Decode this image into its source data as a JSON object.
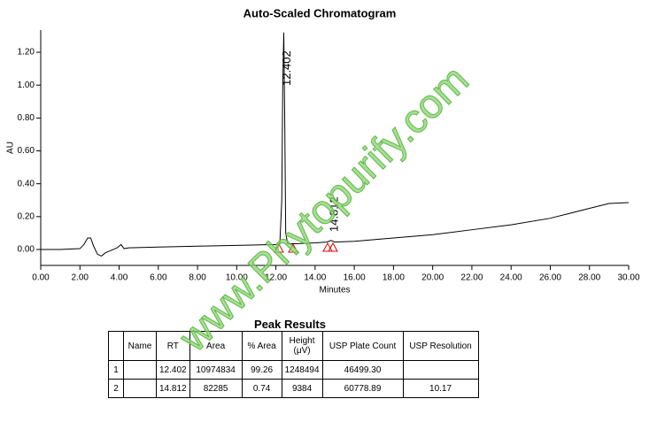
{
  "chart_data": {
    "type": "line",
    "title": "Auto-Scaled Chromatogram",
    "y_label": "AU",
    "x_label": "Minutes",
    "x": [
      0,
      1,
      2,
      2.2,
      2.4,
      2.55,
      2.7,
      2.9,
      3.1,
      3.3,
      3.6,
      3.9,
      4.1,
      4.25,
      4.5,
      6,
      8,
      10,
      12,
      12.2,
      12.3,
      12.35,
      12.402,
      12.45,
      12.5,
      12.6,
      13,
      14,
      14.6,
      14.812,
      15.0,
      16,
      18,
      20,
      22,
      24,
      26,
      27,
      28,
      29,
      30
    ],
    "series": [
      {
        "color": "#000000",
        "values": [
          0,
          0,
          0.005,
          0.03,
          0.07,
          0.07,
          0.02,
          -0.03,
          -0.04,
          -0.02,
          -0.005,
          0.01,
          0.03,
          0.005,
          0.01,
          0.015,
          0.02,
          0.025,
          0.03,
          0.035,
          0.3,
          1.0,
          1.32,
          0.8,
          0.1,
          0.035,
          0.035,
          0.04,
          0.045,
          0.055,
          0.045,
          0.05,
          0.07,
          0.09,
          0.12,
          0.15,
          0.19,
          0.22,
          0.25,
          0.28,
          0.285
        ]
      }
    ],
    "annotations": [
      {
        "label": "12.402",
        "x": 12.402
      },
      {
        "label": "14.812",
        "x": 14.812
      }
    ],
    "xlim": [
      0,
      30
    ],
    "ylim": [
      -0.097,
      1.335
    ],
    "xticks": [
      {
        "value": 0,
        "label": "0.00"
      },
      {
        "value": 2,
        "label": "2.00"
      },
      {
        "value": 4,
        "label": "4.00"
      },
      {
        "value": 6,
        "label": "6.00"
      },
      {
        "value": 8,
        "label": "8.00"
      },
      {
        "value": 10,
        "label": "10.00"
      },
      {
        "value": 12,
        "label": "12.00"
      },
      {
        "value": 14,
        "label": "14.00"
      },
      {
        "value": 16,
        "label": "16.00"
      },
      {
        "value": 18,
        "label": "18.00"
      },
      {
        "value": 20,
        "label": "20.00"
      },
      {
        "value": 22,
        "label": "22.00"
      },
      {
        "value": 24,
        "label": "24.00"
      },
      {
        "value": 26,
        "label": "26.00"
      },
      {
        "value": 28,
        "label": "28.00"
      },
      {
        "value": 30,
        "label": "30.00"
      }
    ],
    "yticks": [
      {
        "value": 0,
        "label": "0.00"
      },
      {
        "value": 0.2,
        "label": "0.20"
      },
      {
        "value": 0.4,
        "label": "0.40"
      },
      {
        "value": 0.6,
        "label": "0.60"
      },
      {
        "value": 0.8,
        "label": "0.80"
      },
      {
        "value": 1.0,
        "label": "1.00"
      },
      {
        "value": 1.2,
        "label": "1.20"
      }
    ]
  },
  "table": {
    "title": "Peak Results",
    "header": [
      null,
      "Name",
      "RT",
      "Area",
      "% Area",
      "Height (μV)",
      "USP Plate Count",
      "USP Resolution"
    ],
    "rows": [
      [
        "1",
        null,
        "12.402",
        "10974834",
        "99.26",
        "1248494",
        "46499.30",
        null
      ],
      [
        "2",
        null,
        "14.812",
        "82285",
        "0.74",
        "9384",
        "60778.89",
        "10.17"
      ]
    ]
  },
  "watermark": "www.Phytopurify.com"
}
